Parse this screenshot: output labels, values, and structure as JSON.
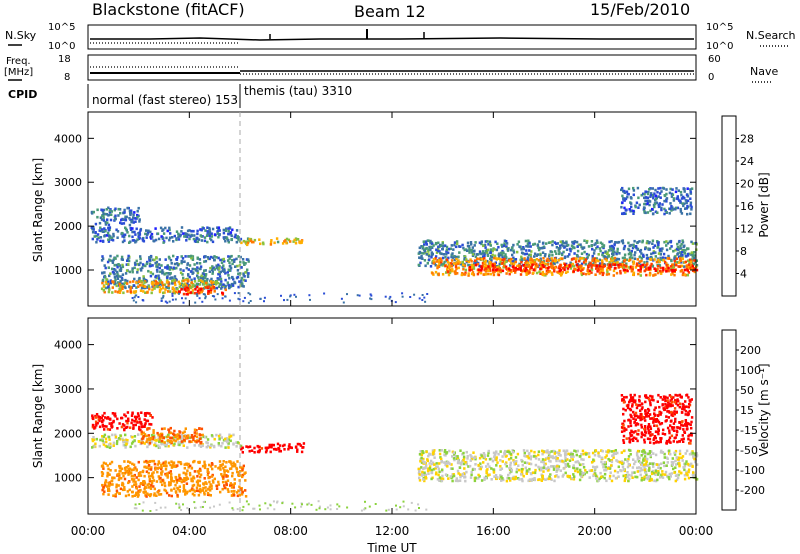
{
  "header": {
    "station": "Blackstone (fitACF)",
    "beam": "Beam 12",
    "date": "15/Feb/2010"
  },
  "strip_nsky": {
    "left_label": "N.Sky",
    "right_label": "N.Search",
    "tick_top": "10^5",
    "tick_bottom": "10^0",
    "rtick_top": "10^5",
    "rtick_bottom": "10^0"
  },
  "strip_freq": {
    "left_label": "Freq.",
    "left_unit": "[MHz]",
    "right_label": "Nave",
    "tick_top": "18",
    "tick_bottom": "8",
    "rtick_top": "60",
    "rtick_bottom": "0"
  },
  "cpid": {
    "label": "CPID",
    "modes": [
      {
        "name": "normal (fast stereo) 153",
        "start_hour": 0
      },
      {
        "name": "themis (tau) 3310",
        "start_hour": 6
      }
    ]
  },
  "power_panel": {
    "ylabel": "Slant Range [km]",
    "yticks": [
      "1000",
      "2000",
      "3000",
      "4000"
    ],
    "colorbar_label": "Power [dB]",
    "colorbar_ticks": [
      "28",
      "24",
      "20",
      "16",
      "12",
      "8",
      "4"
    ],
    "colors": [
      "#1e1eff",
      "#2a4cd6",
      "#3a72a6",
      "#4a9a78",
      "#8ac23c",
      "#ffae00",
      "#ff7800",
      "#ff3c00",
      "#ff0000"
    ]
  },
  "velocity_panel": {
    "ylabel": "Slant Range [km]",
    "yticks": [
      "1000",
      "2000",
      "3000",
      "4000"
    ],
    "colorbar_label": "Velocity [m s⁻¹]",
    "colorbar_ticks": [
      "200",
      "100",
      "50",
      "15",
      "-15",
      "-50",
      "-100",
      "-200"
    ],
    "colors": [
      "#1e1eb4",
      "#2a6ad6",
      "#2aa860",
      "#8ad23c",
      "#c8c8c8",
      "#ffd200",
      "#ff9600",
      "#ff5000",
      "#ff0000"
    ]
  },
  "xaxis": {
    "label": "Time UT",
    "ticks": [
      "00:00",
      "04:00",
      "08:00",
      "12:00",
      "16:00",
      "20:00",
      "00:00"
    ]
  },
  "chart_data": [
    {
      "type": "heatmap",
      "title": "Power",
      "xlabel": "Time UT",
      "ylabel": "Slant Range [km]",
      "xlim_hours": [
        0,
        24
      ],
      "ylim_km": [
        180,
        4600
      ],
      "zlabel": "Power [dB]",
      "zlim": [
        0,
        32
      ],
      "regions": [
        {
          "t0": 0.1,
          "t1": 2.0,
          "r0": 2050,
          "r1": 2450,
          "z": 8
        },
        {
          "t0": 0.1,
          "t1": 6.0,
          "r0": 1650,
          "r1": 2000,
          "z": 8
        },
        {
          "t0": 0.5,
          "t1": 6.3,
          "r0": 600,
          "r1": 1350,
          "z": 10
        },
        {
          "t0": 0.5,
          "t1": 5.0,
          "r0": 500,
          "r1": 800,
          "z": 20
        },
        {
          "t0": 3.5,
          "t1": 5.5,
          "r0": 470,
          "r1": 650,
          "z": 28
        },
        {
          "t0": 6.0,
          "t1": 8.5,
          "r0": 1600,
          "r1": 1750,
          "z": 18
        },
        {
          "t0": 13.0,
          "t1": 24.0,
          "r0": 1100,
          "r1": 1700,
          "z": 10
        },
        {
          "t0": 13.5,
          "t1": 24.0,
          "r0": 900,
          "r1": 1300,
          "z": 22
        },
        {
          "t0": 15.0,
          "t1": 24.0,
          "r0": 1000,
          "r1": 1150,
          "z": 28
        },
        {
          "t0": 21.0,
          "t1": 23.8,
          "r0": 2300,
          "r1": 2900,
          "z": 8
        }
      ]
    },
    {
      "type": "heatmap",
      "title": "Velocity",
      "xlabel": "Time UT",
      "ylabel": "Slant Range [km]",
      "xlim_hours": [
        0,
        24
      ],
      "ylim_km": [
        180,
        4600
      ],
      "zlabel": "Velocity [m s⁻¹]",
      "zlim": [
        -250,
        250
      ],
      "regions": [
        {
          "t0": 0.1,
          "t1": 2.5,
          "r0": 2100,
          "r1": 2500,
          "z": -200
        },
        {
          "t0": 0.1,
          "t1": 6.0,
          "r0": 1700,
          "r1": 2000,
          "z": 0
        },
        {
          "t0": 0.5,
          "t1": 6.2,
          "r0": 600,
          "r1": 1400,
          "z": -80
        },
        {
          "t0": 2.0,
          "t1": 4.5,
          "r0": 1800,
          "r1": 2150,
          "z": -100
        },
        {
          "t0": 6.0,
          "t1": 8.5,
          "r0": 1600,
          "r1": 1800,
          "z": -200
        },
        {
          "t0": 13.0,
          "t1": 24.0,
          "r0": 950,
          "r1": 1650,
          "z": 0
        },
        {
          "t0": 21.0,
          "t1": 23.8,
          "r0": 1800,
          "r1": 2900,
          "z": -200
        }
      ]
    }
  ]
}
